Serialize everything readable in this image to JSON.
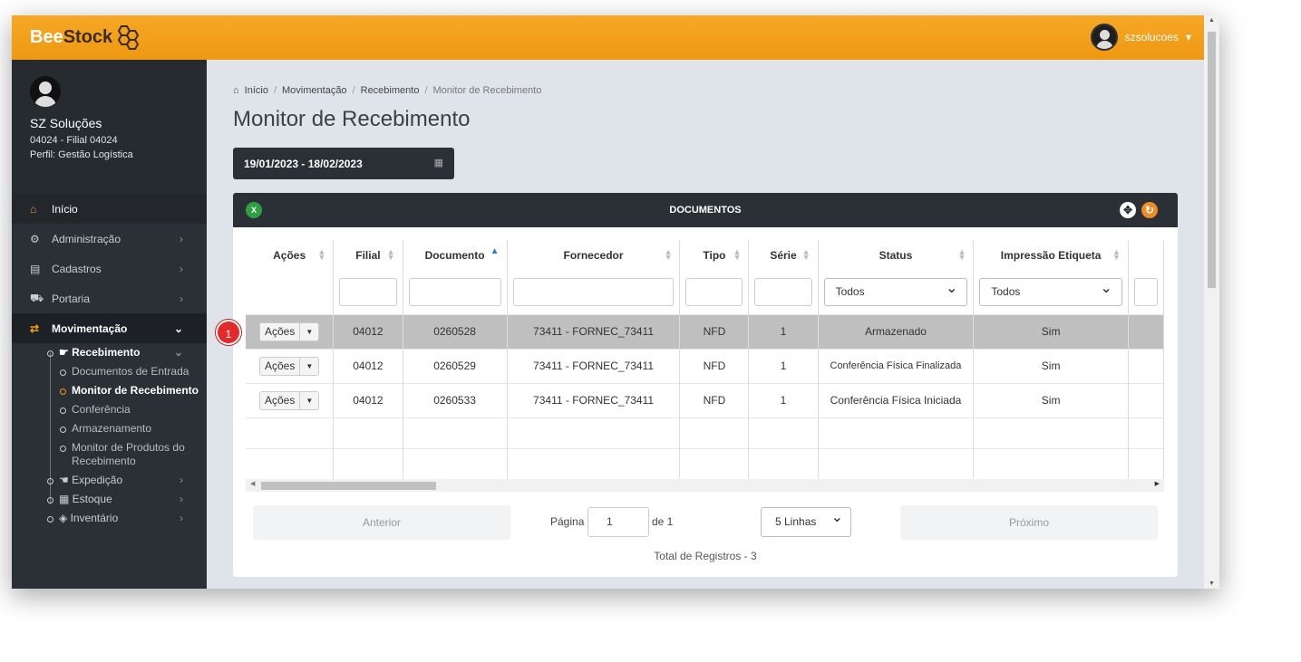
{
  "brand": {
    "part1": "Bee",
    "part2": "Stock"
  },
  "user_menu": {
    "username": "szsolucoes",
    "caret": "▾"
  },
  "profile": {
    "company": "SZ Soluções",
    "branch": "04024 - Filial 04024",
    "role": "Perfil: Gestão Logística"
  },
  "nav": {
    "inicio": "Início",
    "administracao": "Administração",
    "cadastros": "Cadastros",
    "portaria": "Portaria",
    "movimentacao": "Movimentação",
    "recebimento": "Recebimento",
    "documentos_entrada": "Documentos de Entrada",
    "monitor_recebimento": "Monitor de Recebimento",
    "conferencia": "Conferência",
    "armazenamento": "Armazenamento",
    "monitor_produtos": "Monitor de Produtos do Recebimento",
    "expedicao": "Expedição",
    "estoque": "Estoque",
    "inventario": "Inventário"
  },
  "breadcrumb": [
    "Início",
    "Movimentação",
    "Recebimento",
    "Monitor de Recebimento"
  ],
  "page_title": "Monitor de Recebimento",
  "date_range": "19/01/2023 - 18/02/2023",
  "panel_title": "DOCUMENTOS",
  "columns": [
    "Ações",
    "Filial",
    "Documento",
    "Fornecedor",
    "Tipo",
    "Série",
    "Status",
    "Impressão Etiqueta"
  ],
  "filters": {
    "status": "Todos",
    "impressao": "Todos"
  },
  "action_label": "Ações",
  "rows": [
    {
      "filial": "04012",
      "documento": "0260528",
      "fornecedor": "73411 - FORNEC_73411",
      "tipo": "NFD",
      "serie": "1",
      "status": "Armazenado",
      "impressao": "Sim"
    },
    {
      "filial": "04012",
      "documento": "0260529",
      "fornecedor": "73411 - FORNEC_73411",
      "tipo": "NFD",
      "serie": "1",
      "status": "Conferência Física Finalizada",
      "impressao": "Sim"
    },
    {
      "filial": "04012",
      "documento": "0260533",
      "fornecedor": "73411 - FORNEC_73411",
      "tipo": "NFD",
      "serie": "1",
      "status": "Conferência Física Iniciada",
      "impressao": "Sim"
    }
  ],
  "step_badge": "1",
  "pager": {
    "prev": "Anterior",
    "page_label": "Página",
    "page_value": "1",
    "of": "de 1",
    "rows_per_page": "5 Linhas",
    "next": "Próximo",
    "total": "Total de Registros - 3"
  }
}
